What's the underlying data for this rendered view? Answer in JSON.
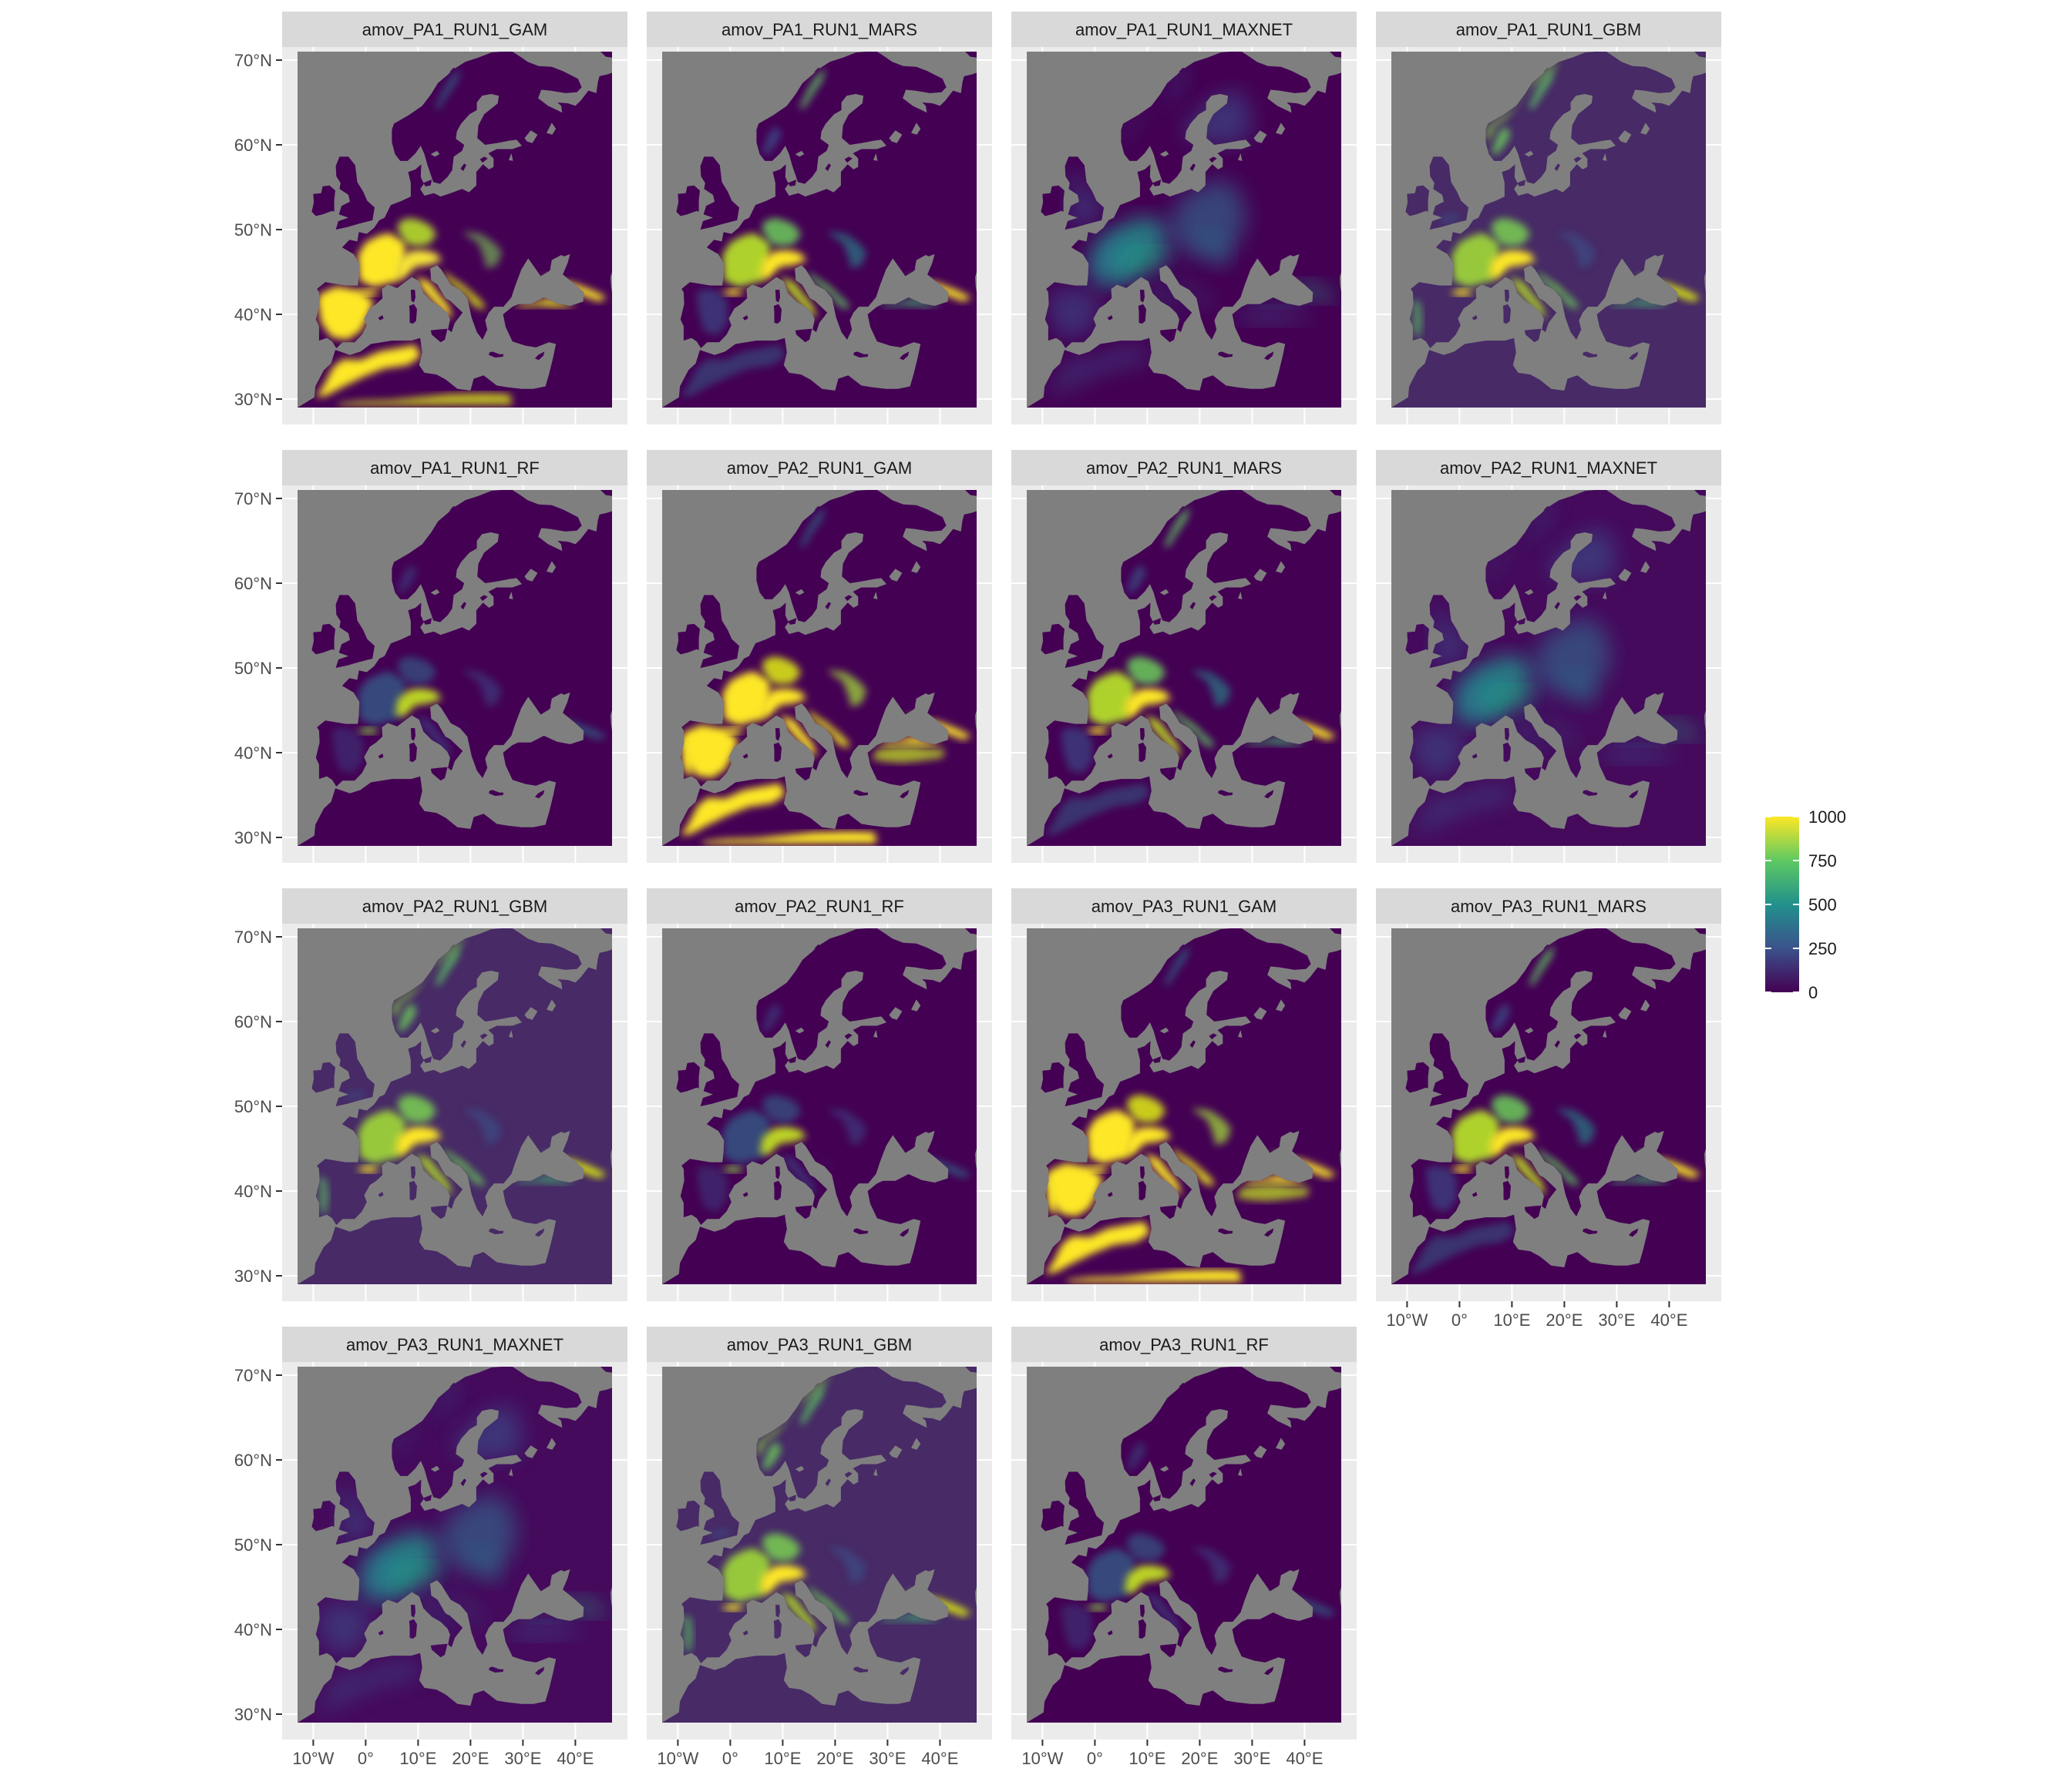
{
  "figure": {
    "panels": [
      {
        "title": "amov_PA1_RUN1_GAM",
        "pattern": "gam",
        "background": "#440154"
      },
      {
        "title": "amov_PA1_RUN1_MARS",
        "pattern": "mars",
        "background": "#440154"
      },
      {
        "title": "amov_PA1_RUN1_MAXNET",
        "pattern": "maxnet",
        "background": "#440154"
      },
      {
        "title": "amov_PA1_RUN1_GBM",
        "pattern": "gbm",
        "background": "#472a66"
      },
      {
        "title": "amov_PA1_RUN1_RF",
        "pattern": "rf",
        "background": "#440154"
      },
      {
        "title": "amov_PA2_RUN1_GAM",
        "pattern": "gam-strong",
        "background": "#440154"
      },
      {
        "title": "amov_PA2_RUN1_MARS",
        "pattern": "mars",
        "background": "#440154"
      },
      {
        "title": "amov_PA2_RUN1_MAXNET",
        "pattern": "maxnet",
        "background": "#450a5c"
      },
      {
        "title": "amov_PA2_RUN1_GBM",
        "pattern": "gbm",
        "background": "#472a66"
      },
      {
        "title": "amov_PA2_RUN1_RF",
        "pattern": "rf",
        "background": "#440154"
      },
      {
        "title": "amov_PA3_RUN1_GAM",
        "pattern": "gam-strong",
        "background": "#440154"
      },
      {
        "title": "amov_PA3_RUN1_MARS",
        "pattern": "mars",
        "background": "#440154"
      },
      {
        "title": "amov_PA3_RUN1_MAXNET",
        "pattern": "maxnet",
        "background": "#450a5c"
      },
      {
        "title": "amov_PA3_RUN1_GBM",
        "pattern": "gbm",
        "background": "#472a66"
      },
      {
        "title": "amov_PA3_RUN1_RF",
        "pattern": "rf",
        "background": "#440154"
      }
    ],
    "y_axis_ticks": [
      "70°N",
      "60°N",
      "50°N",
      "40°N",
      "30°N"
    ],
    "y_axis_values": [
      70,
      60,
      50,
      40,
      30
    ],
    "x_axis_ticks": [
      "10°W",
      "0°",
      "10°E",
      "20°E",
      "30°E",
      "40°E"
    ],
    "x_axis_values": [
      -10,
      0,
      10,
      20,
      30,
      40
    ],
    "extent": {
      "lon": [
        -13,
        47
      ],
      "lat": [
        29,
        71
      ]
    },
    "legend": {
      "ticks": [
        "1000",
        "750",
        "500",
        "250",
        "0"
      ],
      "values": [
        1000,
        750,
        500,
        250,
        0
      ],
      "range": [
        0,
        1000
      ],
      "colors": [
        "#440154",
        "#3b528b",
        "#21918c",
        "#5ec962",
        "#fde725"
      ]
    },
    "colors": {
      "sea": "#7f7f7f",
      "panel_background": "#ebebeb",
      "strip": "#d9d9d9",
      "grid": "#ffffff"
    }
  }
}
